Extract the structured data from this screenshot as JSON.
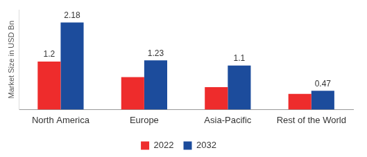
{
  "chart_data": {
    "type": "bar",
    "y_label": "Market Size in USD Bn",
    "categories": [
      "North America",
      "Europe",
      "Asia-Pacific",
      "Rest of the World"
    ],
    "series": [
      {
        "name": "2022",
        "color": "#ee2c2c",
        "values": [
          1.2,
          0.81,
          0.56,
          0.39
        ],
        "value_labels": [
          "1.2",
          null,
          null,
          null
        ]
      },
      {
        "name": "2032",
        "color": "#1c4c9c",
        "values": [
          2.18,
          1.23,
          1.1,
          0.47
        ]
      }
    ],
    "ylim": [
      0,
      2.5
    ],
    "grid": false,
    "legend": "bottom",
    "tick_labels": "x",
    "data_labels": true
  }
}
